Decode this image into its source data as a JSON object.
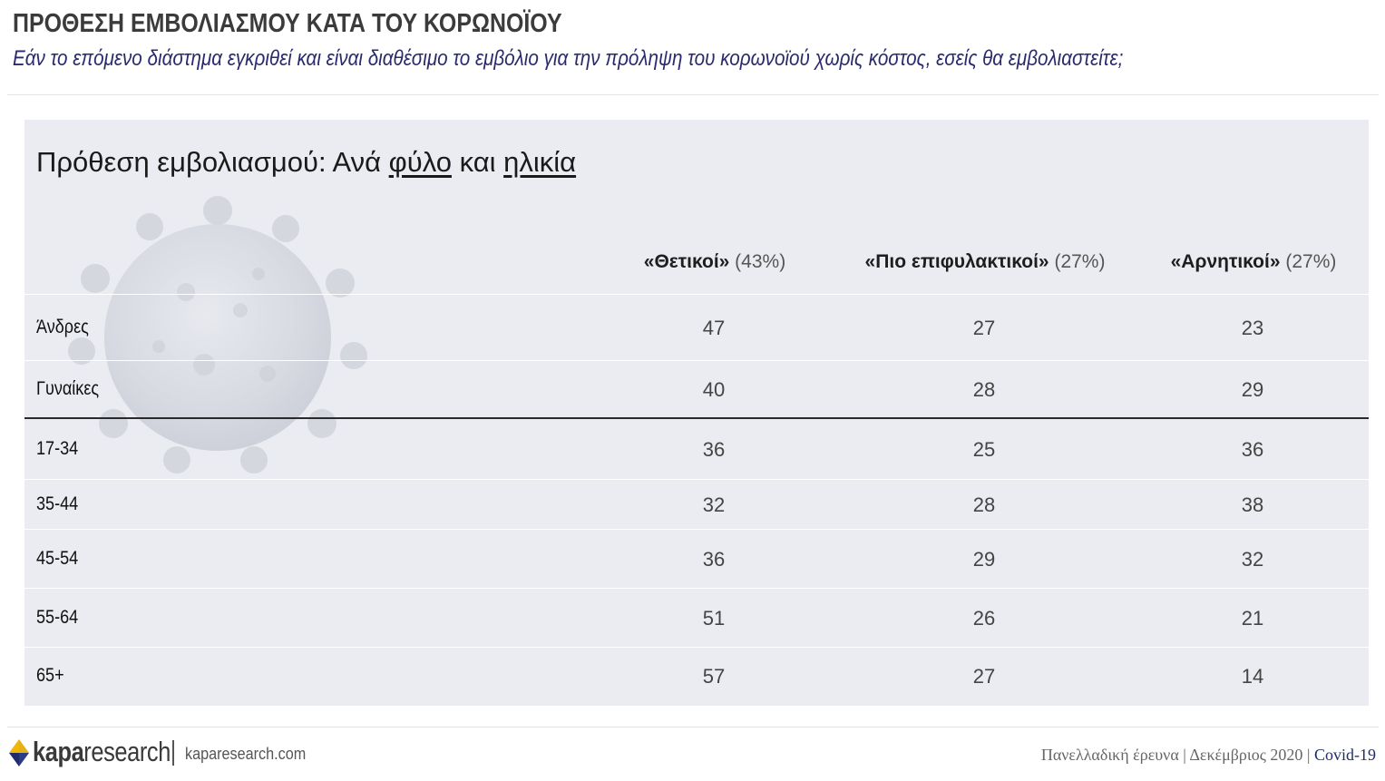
{
  "header": {
    "title": "ΠΡΟΘΕΣΗ ΕΜΒΟΛΙΑΣΜΟΥ ΚΑΤΑ ΤΟΥ ΚΟΡΩΝΟΪΟΥ",
    "subtitle": "Εάν το επόμενο διάστημα εγκριθεί και είναι διαθέσιμο το εμβόλιο για την πρόληψη του κορωνοϊού χωρίς κόστος, εσείς θα εμβολιαστείτε;"
  },
  "panel": {
    "title_prefix": "Πρόθεση εμβολιασμού: Ανά ",
    "title_u1": "φύλο",
    "title_mid": " και ",
    "title_u2": "ηλικία",
    "columns": [
      {
        "label": "«Θετικοί»",
        "pct": "(43%)"
      },
      {
        "label": "«Πιο επιφυλακτικοί»",
        "pct": "(27%)"
      },
      {
        "label": "«Αρνητικοί»",
        "pct": "(27%)"
      }
    ],
    "rows": [
      {
        "label": "Άνδρες",
        "values": [
          "47",
          "27",
          "23"
        ]
      },
      {
        "label": "Γυναίκες",
        "values": [
          "40",
          "28",
          "29"
        ]
      },
      {
        "label": "17-34",
        "values": [
          "36",
          "25",
          "36"
        ]
      },
      {
        "label": "35-44",
        "values": [
          "32",
          "28",
          "38"
        ]
      },
      {
        "label": "45-54",
        "values": [
          "36",
          "29",
          "32"
        ]
      },
      {
        "label": "55-64",
        "values": [
          "51",
          "26",
          "21"
        ]
      },
      {
        "label": "65+",
        "values": [
          "57",
          "27",
          "14"
        ]
      }
    ]
  },
  "footer": {
    "brand_bold": "kapa",
    "brand_light": "research",
    "site": "kaparesearch.com",
    "survey": "Πανελλαδική έρευνα | Δεκέμβριος 2020 | ",
    "tag": "Covid-19"
  },
  "colors": {
    "panel_bg": "#eaecf1",
    "subtitle": "#2a2a6e",
    "logo_yellow": "#f2b705",
    "logo_navy": "#1f2d6b"
  },
  "icons": [
    "coronavirus-watermark-icon",
    "kapa-logo-icon"
  ]
}
